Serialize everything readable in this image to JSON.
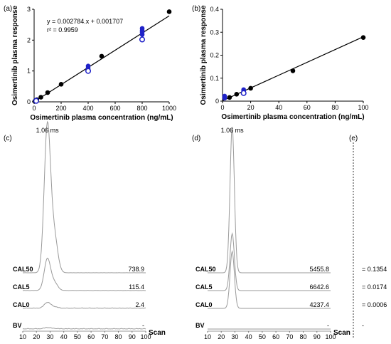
{
  "panels": {
    "a": "(a)",
    "b": "(b)",
    "c": "(c)",
    "d": "(d)",
    "e": "(e)"
  },
  "colors": {
    "black": "#000000",
    "blue": "#1f22c8",
    "trace": "#9a9a9a"
  },
  "chart_data": [
    {
      "id": "a",
      "type": "scatter",
      "xlabel": "Osimertinib plasma concentration (ng/mL)",
      "ylabel": "Osimertinib plasma response",
      "xlim": [
        0,
        1000
      ],
      "ylim": [
        0,
        3
      ],
      "xticks": [
        0,
        200,
        400,
        600,
        800,
        1000
      ],
      "yticks": [
        0,
        1,
        2,
        3
      ],
      "equation": "y = 0.002784.x + 0.001707",
      "r2": "r² = 0.9959",
      "fit": {
        "slope": 0.002784,
        "intercept": 0.001707
      },
      "series": [
        {
          "color": "black",
          "style": "filled",
          "x": [
            5,
            10,
            20,
            50,
            100,
            200,
            500,
            1000
          ],
          "y": [
            0.02,
            0.03,
            0.07,
            0.15,
            0.3,
            0.57,
            1.48,
            2.92
          ]
        },
        {
          "color": "blue",
          "style": "filled",
          "x": [
            15,
            15,
            15,
            400,
            400,
            400,
            800,
            800,
            800,
            800
          ],
          "y": [
            0.04,
            0.05,
            0.06,
            1.05,
            1.1,
            1.16,
            2.18,
            2.26,
            2.32,
            2.38
          ]
        },
        {
          "color": "blue",
          "style": "open",
          "x": [
            15,
            400,
            800
          ],
          "y": [
            0.03,
            1.0,
            2.02
          ]
        }
      ]
    },
    {
      "id": "b",
      "type": "scatter",
      "xlabel": "Osimertinib plasma concentration (ng/mL)",
      "ylabel": "Osimertinib plasma response",
      "xlim": [
        0,
        100
      ],
      "ylim": [
        0,
        0.4
      ],
      "xticks": [
        0,
        20,
        40,
        60,
        80,
        100
      ],
      "yticks": [
        0,
        0.1,
        0.2,
        0.3,
        0.4
      ],
      "fit": {
        "slope": 0.002784,
        "intercept": 0.001707
      },
      "series": [
        {
          "color": "black",
          "style": "filled",
          "x": [
            5,
            10,
            20,
            50,
            100
          ],
          "y": [
            0.016,
            0.03,
            0.056,
            0.132,
            0.277
          ]
        },
        {
          "color": "blue",
          "style": "filled",
          "x": [
            1.5,
            1.5,
            1.5,
            15,
            15,
            15
          ],
          "y": [
            0.013,
            0.018,
            0.022,
            0.04,
            0.045,
            0.05
          ]
        },
        {
          "color": "blue",
          "style": "open",
          "x": [
            15
          ],
          "y": [
            0.035
          ]
        }
      ]
    },
    {
      "id": "c",
      "type": "line",
      "peak_label": "1.06 ms",
      "xlabel": "Scan",
      "xlim": [
        10,
        100
      ],
      "xticks": [
        10,
        20,
        30,
        40,
        50,
        60,
        70,
        80,
        90,
        100
      ],
      "traces": [
        {
          "label": "CAL50",
          "value": "738.9",
          "peak": 1.0,
          "noise": 0.05
        },
        {
          "label": "CAL5",
          "value": "115.4",
          "peak": 0.55,
          "noise": 0.12
        },
        {
          "label": "CAL0",
          "value": "2.4",
          "peak": 0.1,
          "noise": 0.35
        },
        {
          "label": "BV",
          "value": "-",
          "peak": 0.06,
          "noise": 0.4
        }
      ]
    },
    {
      "id": "d",
      "type": "line",
      "peak_label": "1.06 ms",
      "xlabel": "Scan",
      "xlim": [
        10,
        100
      ],
      "xticks": [
        10,
        20,
        30,
        40,
        50,
        60,
        70,
        80,
        90,
        100
      ],
      "traces": [
        {
          "label": "CAL50",
          "value": "5455.8",
          "peak": 1.0,
          "noise": 0.01
        },
        {
          "label": "CAL5",
          "value": "6642.6",
          "peak": 1.0,
          "noise": 0.01
        },
        {
          "label": "CAL0",
          "value": "4237.4",
          "peak": 1.0,
          "noise": 0.01
        },
        {
          "label": "BV",
          "value": "-",
          "peak": 0.0,
          "noise": 0.02
        }
      ]
    },
    {
      "id": "e",
      "type": "table",
      "values": [
        "= 0.1354",
        "= 0.0174",
        "= 0.0006",
        "-"
      ]
    }
  ]
}
